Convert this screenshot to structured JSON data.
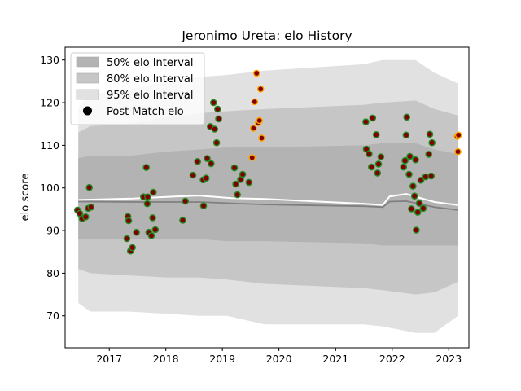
{
  "chart_data": {
    "type": "scatter",
    "title": "Jeronimo Ureta: elo History",
    "xlabel": "",
    "ylabel": "elo score",
    "xlim": [
      "2016-03-22",
      "2023-05-11"
    ],
    "ylim": [
      62.5,
      133
    ],
    "xticks": [
      {
        "date": "2017-01-01",
        "label": "2017"
      },
      {
        "date": "2018-01-01",
        "label": "2018"
      },
      {
        "date": "2019-01-01",
        "label": "2019"
      },
      {
        "date": "2020-01-01",
        "label": "2020"
      },
      {
        "date": "2021-01-01",
        "label": "2021"
      },
      {
        "date": "2022-01-01",
        "label": "2022"
      },
      {
        "date": "2023-01-01",
        "label": "2023"
      }
    ],
    "yticks": [
      70,
      80,
      90,
      100,
      110,
      120,
      130
    ],
    "grid": false,
    "legend_position": "top-left",
    "legend": [
      {
        "label": "50% elo Interval",
        "kind": "band",
        "color": "#b3b3b3"
      },
      {
        "label": "80% elo Interval",
        "kind": "band",
        "color": "#c6c6c6"
      },
      {
        "label": "95% elo Interval",
        "kind": "band",
        "color": "#e1e1e1"
      },
      {
        "label": "Post Match elo",
        "kind": "marker",
        "color": "#000000"
      }
    ],
    "bands": [
      {
        "level": "95%",
        "color": "#e1e1e1",
        "x": [
          "2016-06-15",
          "2016-09-01",
          "2017-05-01",
          "2018-01-01",
          "2018-08-01",
          "2019-02-01",
          "2019-10-01",
          "2021-07-01",
          "2021-11-01",
          "2022-06-01",
          "2022-10-01",
          "2023-03-01"
        ],
        "upper": [
          119,
          122,
          123,
          125,
          126,
          126.5,
          127.5,
          129,
          130,
          130,
          127,
          124.5
        ],
        "lower": [
          73,
          71,
          71,
          70.5,
          70,
          70,
          68,
          68,
          67.5,
          66,
          66,
          70
        ]
      },
      {
        "level": "80%",
        "color": "#c6c6c6",
        "x": [
          "2016-06-15",
          "2016-09-01",
          "2017-05-01",
          "2018-01-01",
          "2018-08-01",
          "2019-02-01",
          "2019-10-01",
          "2021-07-01",
          "2021-11-01",
          "2022-06-01",
          "2022-10-01",
          "2023-03-01"
        ],
        "upper": [
          113,
          114.5,
          115,
          116.5,
          117.5,
          118,
          118.5,
          119.5,
          120,
          120.5,
          118.5,
          117
        ],
        "lower": [
          81,
          80,
          79.5,
          79,
          79,
          78.5,
          77.5,
          76.5,
          76,
          75,
          75.5,
          78
        ]
      },
      {
        "level": "50%",
        "color": "#b3b3b3",
        "x": [
          "2016-06-15",
          "2016-09-01",
          "2017-05-01",
          "2018-01-01",
          "2018-08-01",
          "2019-02-01",
          "2019-10-01",
          "2021-07-01",
          "2021-11-01",
          "2022-06-01",
          "2022-10-01",
          "2023-03-01"
        ],
        "upper": [
          107,
          107.5,
          107.5,
          108.5,
          109,
          109.5,
          109.5,
          110,
          110.5,
          110.5,
          109,
          108
        ],
        "lower": [
          88,
          88,
          88,
          88,
          88,
          87.5,
          87.5,
          87,
          86.5,
          86.5,
          86.5,
          86.5
        ]
      }
    ],
    "series": [
      {
        "kind": "mean",
        "color": "#ffffff",
        "x": [
          "2016-06-15",
          "2017-06-01",
          "2018-03-01",
          "2018-08-01",
          "2019-03-01",
          "2019-10-01",
          "2021-07-01",
          "2021-11-01",
          "2021-12-15",
          "2022-04-01",
          "2022-10-01",
          "2023-03-01"
        ],
        "y": [
          97.2,
          97.5,
          98,
          98.2,
          97.6,
          97.4,
          96.3,
          96.0,
          98.0,
          98.6,
          96.7,
          96.0
        ]
      },
      {
        "kind": "median",
        "color": "#808080",
        "x": [
          "2016-06-15",
          "2017-06-01",
          "2018-03-01",
          "2018-08-01",
          "2019-03-01",
          "2019-10-01",
          "2021-07-01",
          "2021-11-01",
          "2021-12-15",
          "2022-04-01",
          "2022-10-01",
          "2023-03-01"
        ],
        "y": [
          96.8,
          96.7,
          96.7,
          96.7,
          96.4,
          96.1,
          95.7,
          95.5,
          96.8,
          96.9,
          95.5,
          94.8
        ]
      }
    ],
    "points": [
      {
        "date": "2016-06-10",
        "elo": 94.8
      },
      {
        "date": "2016-06-24",
        "elo": 94.0
      },
      {
        "date": "2016-07-10",
        "elo": 92.8
      },
      {
        "date": "2016-08-02",
        "elo": 93.2
      },
      {
        "date": "2016-08-18",
        "elo": 95.2
      },
      {
        "date": "2016-08-25",
        "elo": 100.1
      },
      {
        "date": "2016-09-05",
        "elo": 95.5
      },
      {
        "date": "2017-04-25",
        "elo": 88.1
      },
      {
        "date": "2017-05-01",
        "elo": 93.3
      },
      {
        "date": "2017-05-06",
        "elo": 92.3
      },
      {
        "date": "2017-05-18",
        "elo": 85.2
      },
      {
        "date": "2017-05-30",
        "elo": 86.0
      },
      {
        "date": "2017-06-25",
        "elo": 89.6
      },
      {
        "date": "2017-08-10",
        "elo": 97.9
      },
      {
        "date": "2017-08-28",
        "elo": 104.8
      },
      {
        "date": "2017-09-03",
        "elo": 96.3
      },
      {
        "date": "2017-09-06",
        "elo": 97.9
      },
      {
        "date": "2017-09-13",
        "elo": 89.6
      },
      {
        "date": "2017-09-30",
        "elo": 88.8
      },
      {
        "date": "2017-10-08",
        "elo": 93.0
      },
      {
        "date": "2017-10-12",
        "elo": 99.0
      },
      {
        "date": "2017-10-25",
        "elo": 90.2
      },
      {
        "date": "2018-04-20",
        "elo": 92.4
      },
      {
        "date": "2018-05-07",
        "elo": 96.9
      },
      {
        "date": "2018-06-25",
        "elo": 103.0
      },
      {
        "date": "2018-07-25",
        "elo": 106.2
      },
      {
        "date": "2018-08-30",
        "elo": 101.9
      },
      {
        "date": "2018-09-01",
        "elo": 95.8
      },
      {
        "date": "2018-09-18",
        "elo": 102.3
      },
      {
        "date": "2018-09-25",
        "elo": 106.9
      },
      {
        "date": "2018-10-15",
        "elo": 114.4
      },
      {
        "date": "2018-10-20",
        "elo": 105.7
      },
      {
        "date": "2018-11-05",
        "elo": 120.0
      },
      {
        "date": "2018-11-12",
        "elo": 113.8
      },
      {
        "date": "2018-11-25",
        "elo": 110.6
      },
      {
        "date": "2018-12-01",
        "elo": 118.5
      },
      {
        "date": "2018-12-08",
        "elo": 116.2
      },
      {
        "date": "2019-03-20",
        "elo": 104.7
      },
      {
        "date": "2019-03-28",
        "elo": 100.9
      },
      {
        "date": "2019-04-08",
        "elo": 98.4
      },
      {
        "date": "2019-04-28",
        "elo": 102.0
      },
      {
        "date": "2019-05-12",
        "elo": 103.2
      },
      {
        "date": "2019-06-22",
        "elo": 101.3
      },
      {
        "date": "2019-07-12",
        "elo": 107.1
      },
      {
        "date": "2019-07-20",
        "elo": 114.0
      },
      {
        "date": "2019-07-28",
        "elo": 120.2
      },
      {
        "date": "2019-08-10",
        "elo": 126.9
      },
      {
        "date": "2019-08-20",
        "elo": 115.3
      },
      {
        "date": "2019-08-28",
        "elo": 115.8
      },
      {
        "date": "2019-09-05",
        "elo": 123.2
      },
      {
        "date": "2019-09-12",
        "elo": 111.7
      },
      {
        "date": "2021-07-15",
        "elo": 115.5
      },
      {
        "date": "2021-07-18",
        "elo": 109.1
      },
      {
        "date": "2021-08-05",
        "elo": 108.0
      },
      {
        "date": "2021-08-20",
        "elo": 104.9
      },
      {
        "date": "2021-08-28",
        "elo": 116.4
      },
      {
        "date": "2021-09-20",
        "elo": 112.5
      },
      {
        "date": "2021-09-28",
        "elo": 103.5
      },
      {
        "date": "2021-10-05",
        "elo": 105.6
      },
      {
        "date": "2021-10-20",
        "elo": 107.3
      },
      {
        "date": "2022-03-15",
        "elo": 104.9
      },
      {
        "date": "2022-03-25",
        "elo": 106.4
      },
      {
        "date": "2022-04-01",
        "elo": 112.4
      },
      {
        "date": "2022-04-05",
        "elo": 116.6
      },
      {
        "date": "2022-04-20",
        "elo": 103.2
      },
      {
        "date": "2022-04-25",
        "elo": 107.4
      },
      {
        "date": "2022-05-05",
        "elo": 95.1
      },
      {
        "date": "2022-05-15",
        "elo": 100.4
      },
      {
        "date": "2022-05-25",
        "elo": 98.1
      },
      {
        "date": "2022-06-01",
        "elo": 106.6
      },
      {
        "date": "2022-06-05",
        "elo": 90.1
      },
      {
        "date": "2022-06-15",
        "elo": 94.3
      },
      {
        "date": "2022-06-25",
        "elo": 96.4
      },
      {
        "date": "2022-07-05",
        "elo": 101.8
      },
      {
        "date": "2022-07-20",
        "elo": 95.2
      },
      {
        "date": "2022-08-05",
        "elo": 102.6
      },
      {
        "date": "2022-08-25",
        "elo": 107.9
      },
      {
        "date": "2022-09-01",
        "elo": 112.6
      },
      {
        "date": "2022-09-10",
        "elo": 102.8
      },
      {
        "date": "2022-09-15",
        "elo": 110.6
      },
      {
        "date": "2023-02-25",
        "elo": 112.1
      },
      {
        "date": "2023-03-01",
        "elo": 108.5
      },
      {
        "date": "2023-03-05",
        "elo": 112.4
      }
    ],
    "point_style": {
      "fill": "#800000",
      "edge_default": "#228b22",
      "edge_latest": "#ffa500",
      "latest_from": "2019-07-10"
    }
  }
}
